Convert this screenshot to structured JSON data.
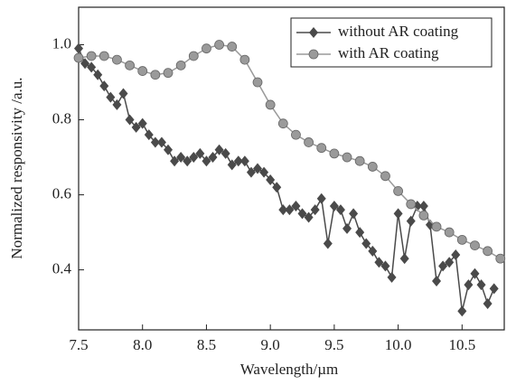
{
  "chart_data": {
    "type": "line",
    "x_label": "Wavelength/µm",
    "y_label": "Normalized responsivity /a.u.",
    "xlim": [
      7.5,
      10.83
    ],
    "ylim": [
      0.24,
      1.1
    ],
    "xticks": [
      7.5,
      {
        "value": 8,
        "label": "8.0"
      },
      8.5,
      {
        "value": 9,
        "label": "9.0"
      },
      9.5,
      {
        "value": 10,
        "label": "10.0"
      },
      10.5
    ],
    "yticks": [
      0.4,
      0.6,
      0.8,
      {
        "value": 1,
        "label": "1.0"
      }
    ],
    "legend": "upper right",
    "series": [
      {
        "name": "without AR coating",
        "color": "#4a4a4a",
        "marker": "diamond",
        "x": [
          7.5,
          7.55,
          7.6,
          7.65,
          7.7,
          7.75,
          7.8,
          7.85,
          7.9,
          7.95,
          8.0,
          8.05,
          8.1,
          8.15,
          8.2,
          8.25,
          8.3,
          8.35,
          8.4,
          8.45,
          8.5,
          8.55,
          8.6,
          8.65,
          8.7,
          8.75,
          8.8,
          8.85,
          8.9,
          8.95,
          9.0,
          9.05,
          9.1,
          9.15,
          9.2,
          9.25,
          9.3,
          9.35,
          9.4,
          9.45,
          9.5,
          9.55,
          9.6,
          9.65,
          9.7,
          9.75,
          9.8,
          9.85,
          9.9,
          9.95,
          10.0,
          10.05,
          10.1,
          10.15,
          10.2,
          10.25,
          10.3,
          10.35,
          10.4,
          10.45,
          10.5,
          10.55,
          10.6,
          10.65,
          10.7,
          10.75
        ],
        "values": [
          0.99,
          0.95,
          0.94,
          0.92,
          0.89,
          0.86,
          0.84,
          0.87,
          0.8,
          0.78,
          0.79,
          0.76,
          0.74,
          0.74,
          0.72,
          0.69,
          0.7,
          0.69,
          0.7,
          0.71,
          0.69,
          0.7,
          0.72,
          0.71,
          0.68,
          0.69,
          0.69,
          0.66,
          0.67,
          0.66,
          0.64,
          0.62,
          0.56,
          0.56,
          0.57,
          0.55,
          0.54,
          0.56,
          0.59,
          0.47,
          0.57,
          0.56,
          0.51,
          0.55,
          0.5,
          0.47,
          0.45,
          0.42,
          0.41,
          0.38,
          0.55,
          0.43,
          0.53,
          0.57,
          0.57,
          0.52,
          0.37,
          0.41,
          0.42,
          0.44,
          0.29,
          0.36,
          0.39,
          0.36,
          0.31,
          0.35
        ]
      },
      {
        "name": "with AR coating",
        "color": "#9a9a9a",
        "marker": "circle",
        "x": [
          7.5,
          7.6,
          7.7,
          7.8,
          7.9,
          8.0,
          8.1,
          8.2,
          8.3,
          8.4,
          8.5,
          8.6,
          8.7,
          8.8,
          8.9,
          9.0,
          9.1,
          9.2,
          9.3,
          9.4,
          9.5,
          9.6,
          9.7,
          9.8,
          9.9,
          10.0,
          10.1,
          10.2,
          10.3,
          10.4,
          10.5,
          10.6,
          10.7,
          10.8
        ],
        "values": [
          0.965,
          0.97,
          0.97,
          0.96,
          0.945,
          0.93,
          0.92,
          0.925,
          0.945,
          0.97,
          0.99,
          1.0,
          0.995,
          0.96,
          0.9,
          0.84,
          0.79,
          0.76,
          0.74,
          0.725,
          0.71,
          0.7,
          0.69,
          0.675,
          0.65,
          0.61,
          0.575,
          0.545,
          0.515,
          0.5,
          0.48,
          0.465,
          0.45,
          0.43
        ]
      }
    ]
  }
}
